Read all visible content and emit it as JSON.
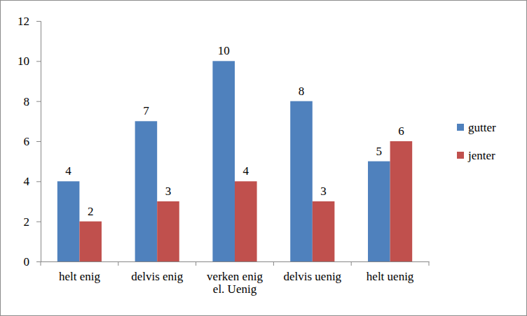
{
  "chart_data": {
    "type": "bar",
    "categories": [
      "helt enig",
      "delvis enig",
      "verken enig\nel. Uenig",
      "delvis uenig",
      "helt uenig"
    ],
    "series": [
      {
        "name": "gutter",
        "color": "#4f81bd",
        "values": [
          4,
          7,
          10,
          8,
          5
        ]
      },
      {
        "name": "jenter",
        "color": "#c0504d",
        "values": [
          2,
          3,
          4,
          3,
          6
        ]
      }
    ],
    "ylim": [
      0,
      12
    ],
    "yticks": [
      0,
      2,
      4,
      6,
      8,
      10,
      12
    ],
    "grid": false,
    "legend": "right",
    "data_labels": true
  }
}
